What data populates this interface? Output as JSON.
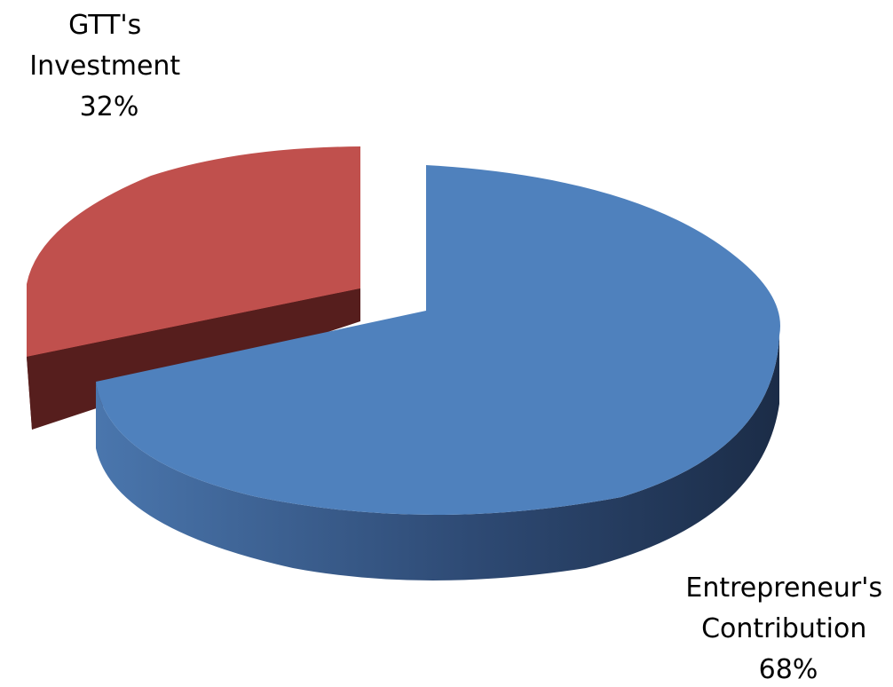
{
  "chart_data": {
    "type": "pie",
    "title": "",
    "slices": [
      {
        "label_lines": [
          "Entrepreneur's",
          "Contribution"
        ],
        "percent_label": "68%",
        "value": 68,
        "color": "#4f81bd",
        "side_color": "#23385a",
        "exploded": false
      },
      {
        "label_lines": [
          "GTT's",
          "Investment"
        ],
        "percent_label": "32%",
        "value": 32,
        "color": "#c0504d",
        "side_color": "#5a1f1e",
        "exploded": true
      }
    ],
    "legend": false,
    "style": "3d-exploded"
  }
}
